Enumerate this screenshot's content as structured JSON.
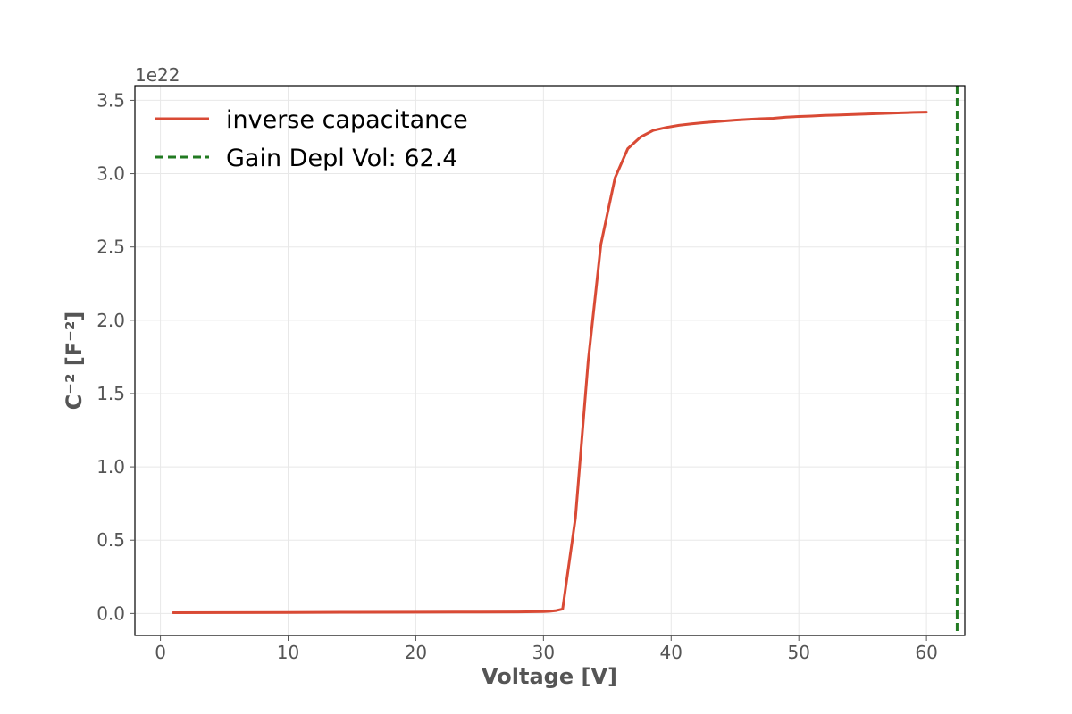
{
  "chart_data": {
    "type": "line",
    "xlabel": "Voltage [V]",
    "ylabel": "C⁻² [F⁻²]",
    "y_offset_label": "1e22",
    "xlim": [
      -2,
      63
    ],
    "ylim": [
      -0.15,
      3.6
    ],
    "x_ticks": [
      0,
      10,
      20,
      30,
      40,
      50,
      60
    ],
    "y_ticks": [
      0.0,
      0.5,
      1.0,
      1.5,
      2.0,
      2.5,
      3.0,
      3.5
    ],
    "grid": true,
    "legend_position": "top-left",
    "series": [
      {
        "name": "inverse capacitance",
        "color": "#d94a35",
        "style": "solid",
        "x": [
          1,
          5,
          10,
          15,
          20,
          25,
          28,
          30,
          30.5,
          31,
          31.5,
          32.5,
          33.5,
          34.5,
          35.6,
          36.6,
          37.6,
          38.6,
          39.6,
          40.6,
          41.6,
          42.6,
          44,
          45,
          46,
          47,
          48,
          49,
          50,
          51,
          52,
          53,
          54,
          55,
          56,
          57,
          58,
          59,
          60
        ],
        "y": [
          0.005,
          0.006,
          0.007,
          0.008,
          0.009,
          0.01,
          0.011,
          0.013,
          0.015,
          0.02,
          0.03,
          0.65,
          1.72,
          2.52,
          2.97,
          3.17,
          3.25,
          3.295,
          3.315,
          3.33,
          3.34,
          3.348,
          3.358,
          3.365,
          3.37,
          3.375,
          3.378,
          3.385,
          3.39,
          3.393,
          3.397,
          3.4,
          3.403,
          3.406,
          3.409,
          3.412,
          3.415,
          3.418,
          3.42
        ]
      },
      {
        "name": "Gain Depl Vol: 62.4",
        "color": "#217a21",
        "style": "dashed",
        "vline_x": 62.4
      }
    ]
  }
}
